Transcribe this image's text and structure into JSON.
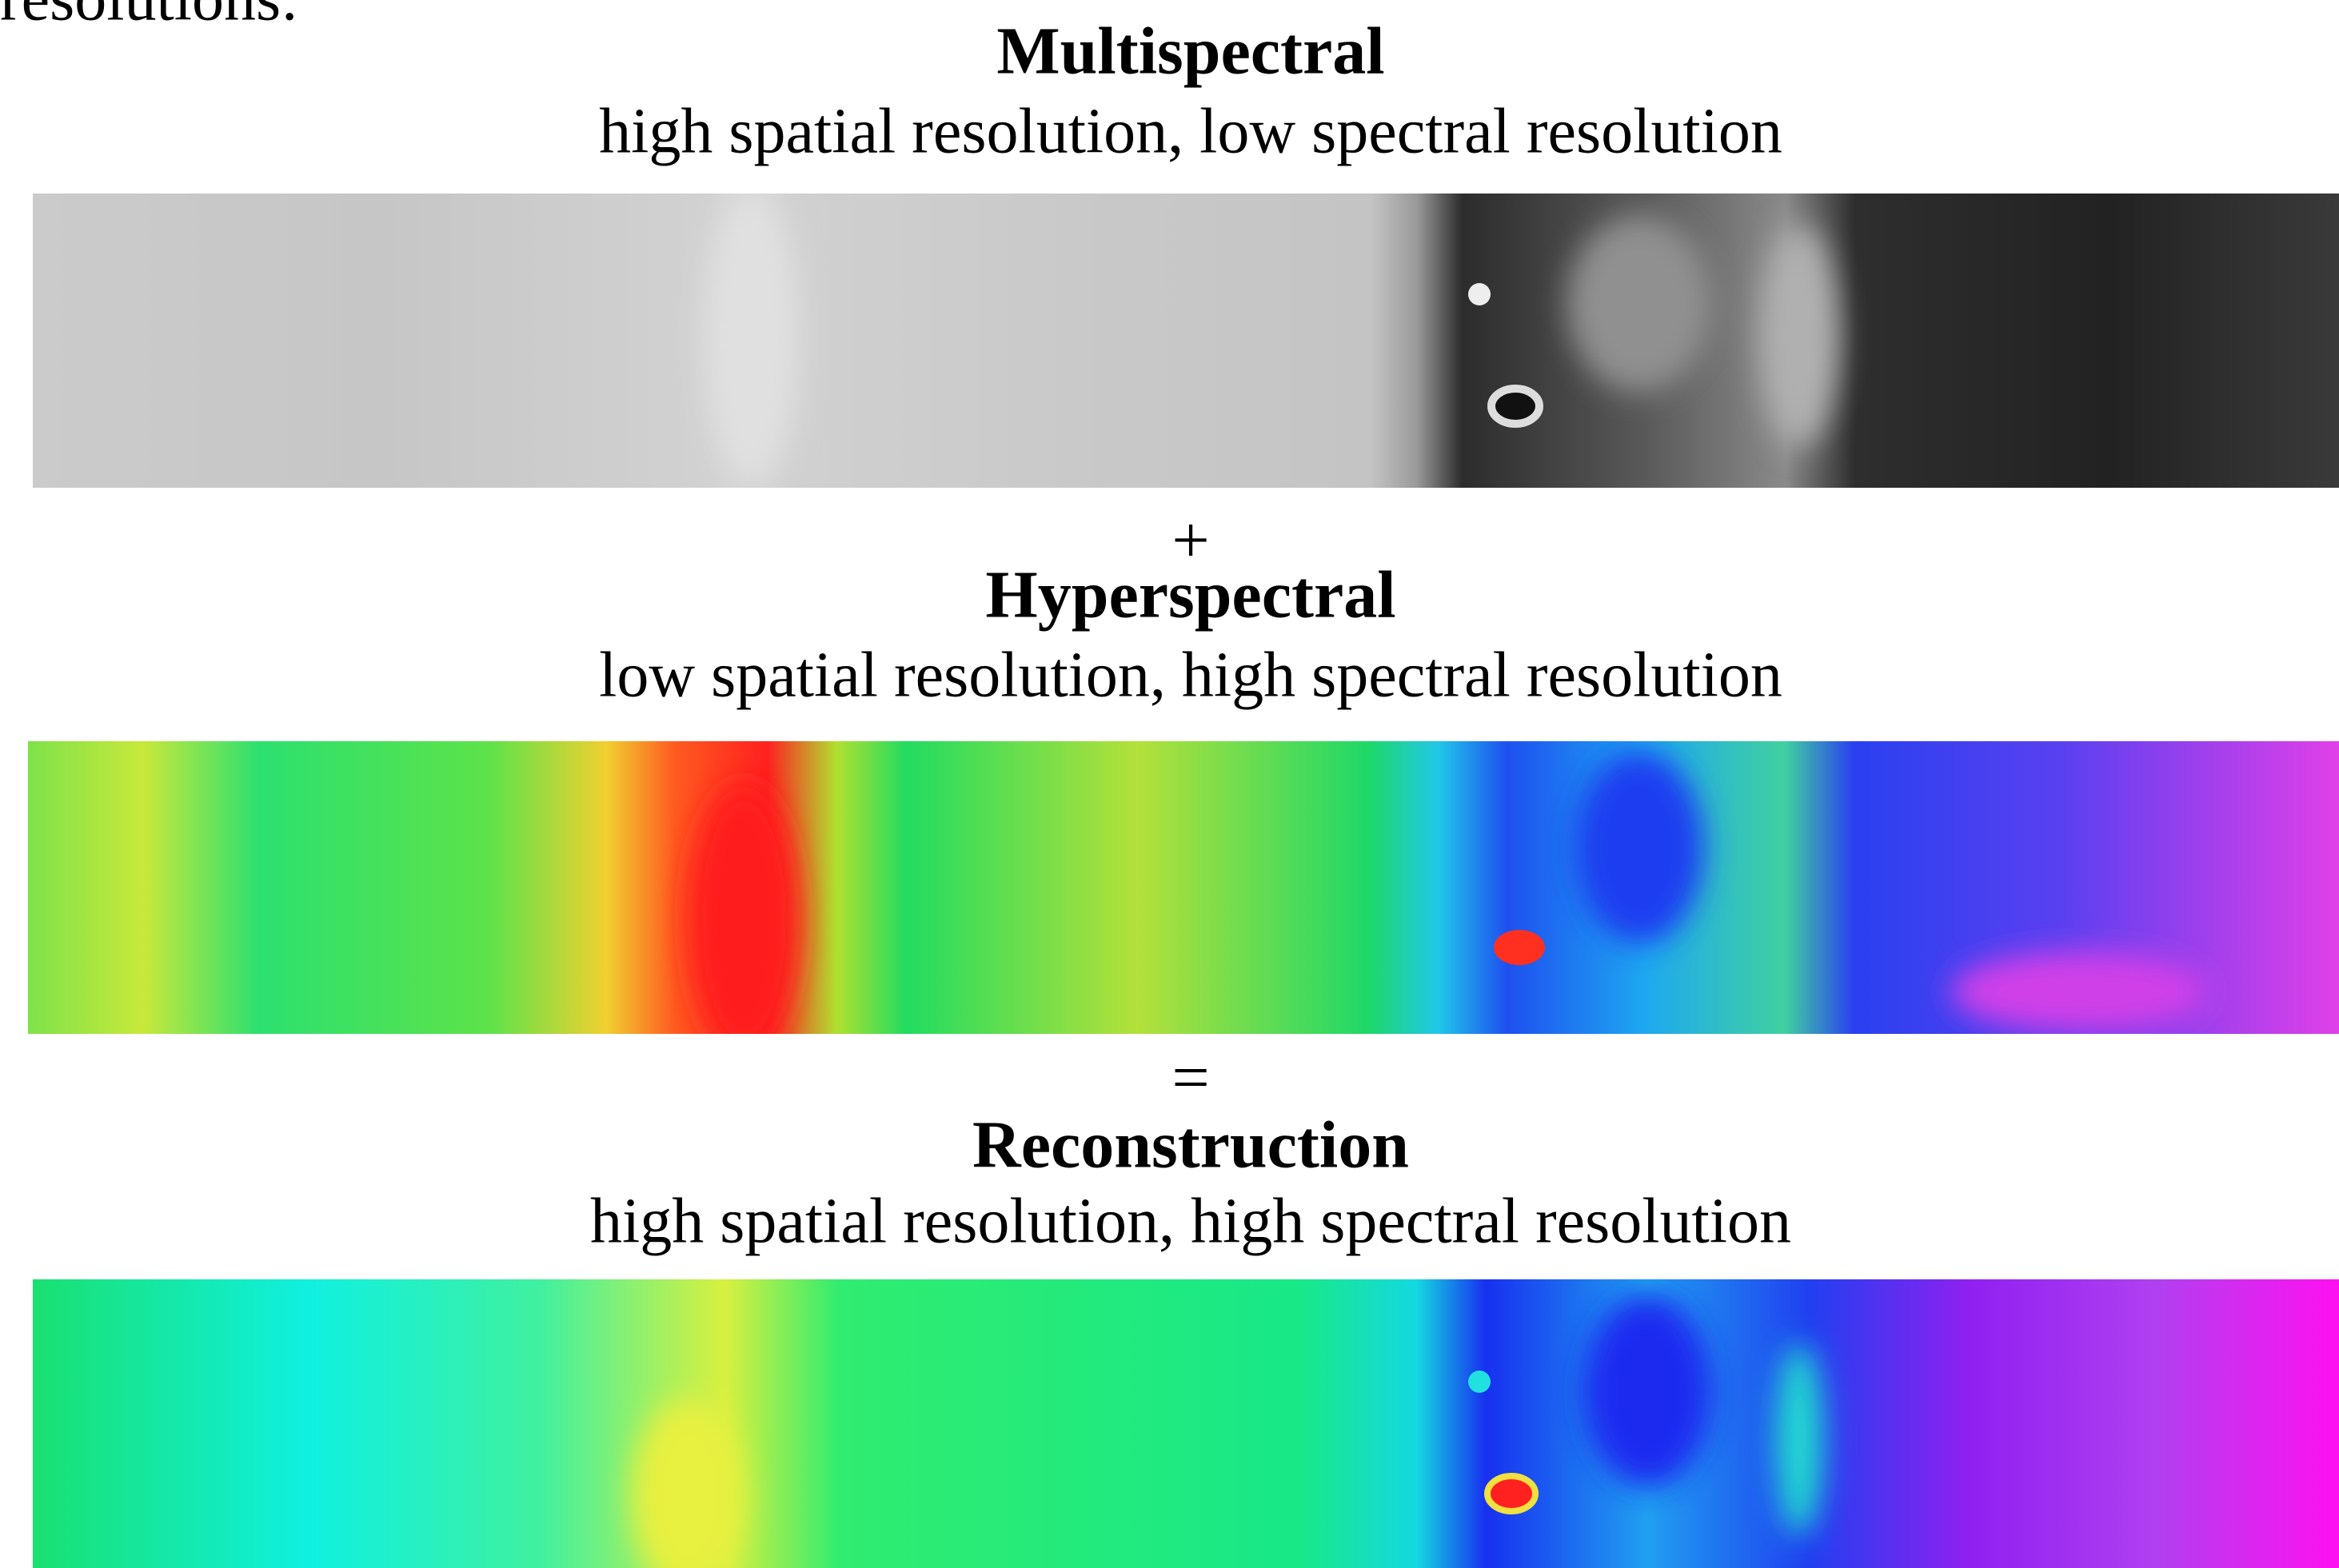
{
  "intro_text": "resolutions:",
  "panels": [
    {
      "title": "Multispectral",
      "subtitle": "high spatial resolution, low spectral resolution"
    },
    {
      "title": "Hyperspectral",
      "subtitle": "low spatial resolution, high spectral resolution"
    },
    {
      "title": "Reconstruction",
      "subtitle": "high spatial resolution, high spectral resolution"
    }
  ],
  "operators": [
    "+",
    "="
  ]
}
